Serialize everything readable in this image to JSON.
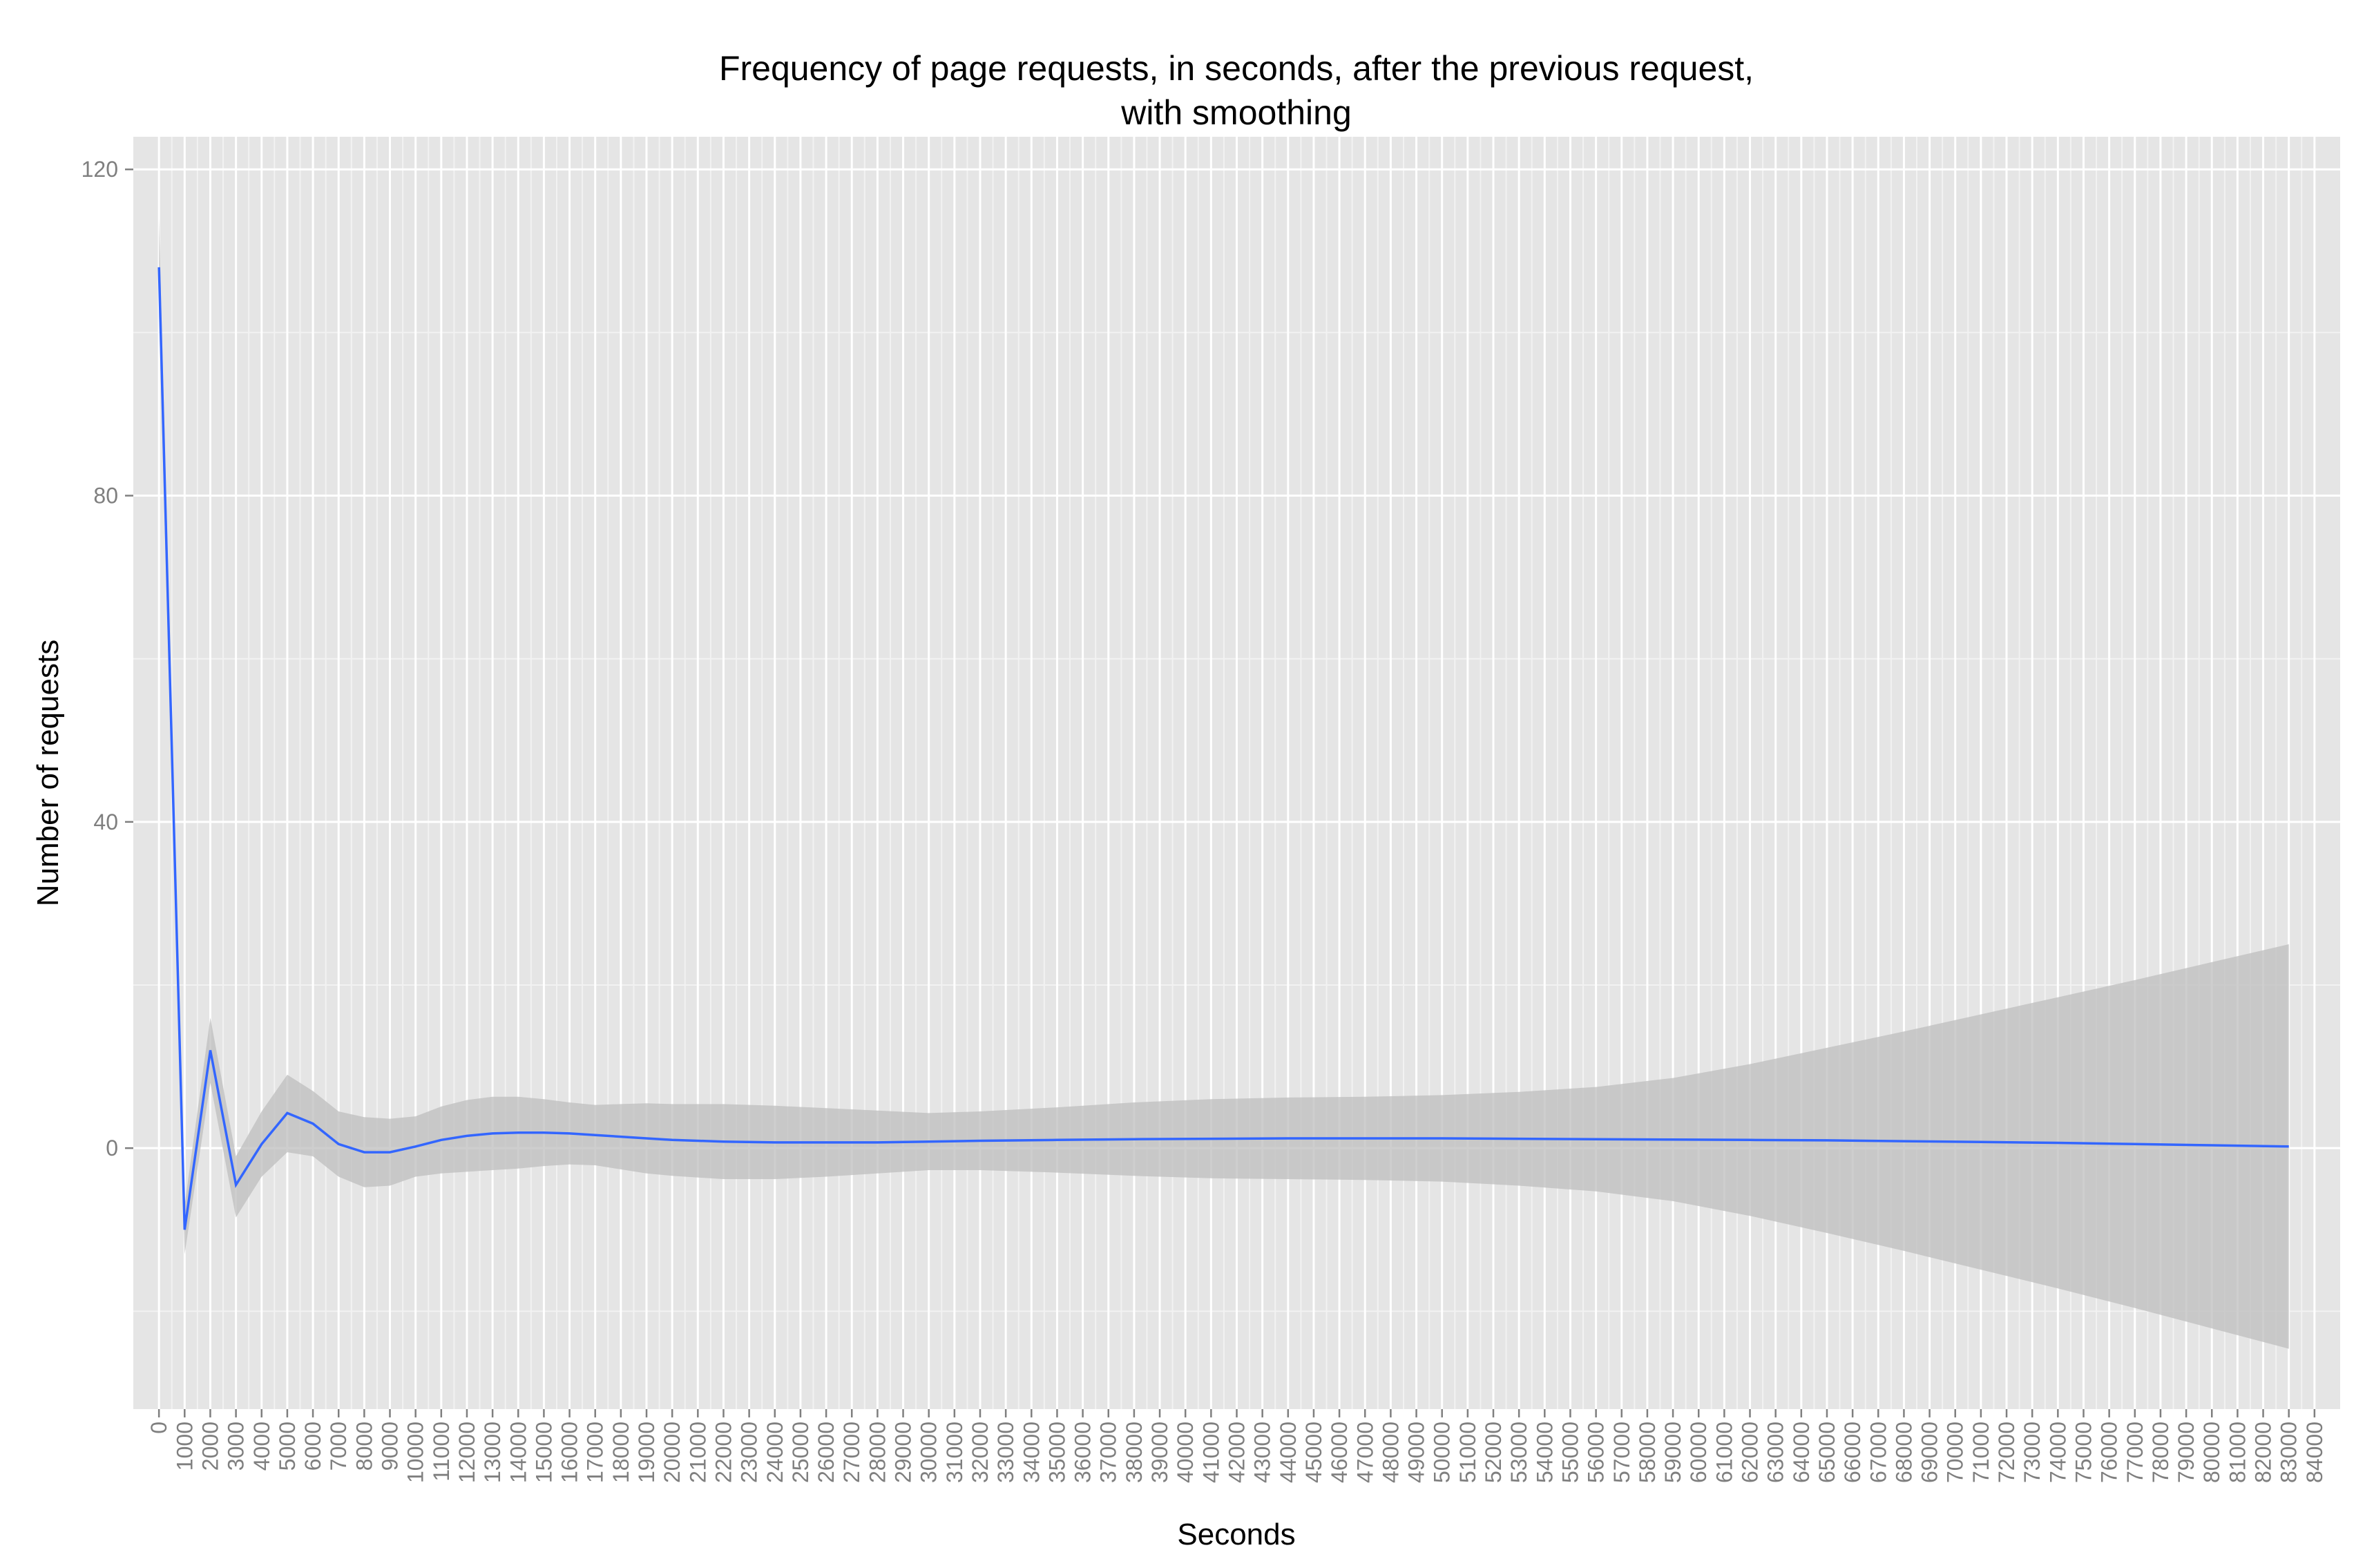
{
  "chart_data": {
    "type": "line",
    "title_lines": [
      "Frequency of page requests, in seconds, after the previous request,",
      "with smoothing"
    ],
    "xlabel": "Seconds",
    "ylabel": "Number of requests",
    "xlim": [
      -1000,
      85000
    ],
    "ylim": [
      -32,
      124
    ],
    "y_ticks": [
      0,
      40,
      80,
      120
    ],
    "y_minor": [
      -20,
      20,
      60,
      100
    ],
    "x_ticks": [
      0,
      1000,
      2000,
      3000,
      4000,
      5000,
      6000,
      7000,
      8000,
      9000,
      10000,
      11000,
      12000,
      13000,
      14000,
      15000,
      16000,
      17000,
      18000,
      19000,
      20000,
      21000,
      22000,
      23000,
      24000,
      25000,
      26000,
      27000,
      28000,
      29000,
      30000,
      31000,
      32000,
      33000,
      34000,
      35000,
      36000,
      37000,
      38000,
      39000,
      40000,
      41000,
      42000,
      43000,
      44000,
      45000,
      46000,
      47000,
      48000,
      49000,
      50000,
      51000,
      52000,
      53000,
      54000,
      55000,
      56000,
      57000,
      58000,
      59000,
      60000,
      61000,
      62000,
      63000,
      64000,
      65000,
      66000,
      67000,
      68000,
      69000,
      70000,
      71000,
      72000,
      73000,
      74000,
      75000,
      76000,
      77000,
      78000,
      79000,
      80000,
      81000,
      82000,
      83000,
      84000
    ],
    "x_labels": [
      "0",
      "1000",
      "2000",
      "3000",
      "4000",
      "5000",
      "6000",
      "7000",
      "8000",
      "9000",
      "10000",
      "11000",
      "12000",
      "13000",
      "14000",
      "15000",
      "16000",
      "17000",
      "18000",
      "19000",
      "20000",
      "21000",
      "22000",
      "23000",
      "24000",
      "25000",
      "26000",
      "27000",
      "28000",
      "29000",
      "30000",
      "31000",
      "32000",
      "33000",
      "34000",
      "35000",
      "36000",
      "37000",
      "38000",
      "39000",
      "40000",
      "41000",
      "42000",
      "43000",
      "44000",
      "45000",
      "46000",
      "47000",
      "48000",
      "49000",
      "50000",
      "51000",
      "52000",
      "53000",
      "54000",
      "55000",
      "56000",
      "57000",
      "58000",
      "59000",
      "60000",
      "61000",
      "62000",
      "63000",
      "64000",
      "65000",
      "66000",
      "67000",
      "68000",
      "69000",
      "70000",
      "71000",
      "72000",
      "73000",
      "74000",
      "75000",
      "76000",
      "77000",
      "78000",
      "79000",
      "80000",
      "81000",
      "82000",
      "83000",
      "84000"
    ],
    "grid": true,
    "background": "#e5e5e5",
    "band_color": "#bdbdbd",
    "line_color": "#3366ff",
    "series": [
      {
        "x": [
          0,
          1000,
          2000,
          3000,
          4000,
          5000,
          6000,
          7000,
          8000,
          9000,
          10000,
          11000,
          12000,
          13000,
          14000,
          15000,
          16000,
          17000,
          18000,
          19000,
          20000,
          22000,
          24000,
          26000,
          28000,
          30000,
          32000,
          35000,
          38000,
          41000,
          44000,
          47000,
          50000,
          53000,
          56000,
          59000,
          62000,
          65000,
          68000,
          71000,
          74000,
          77000,
          80000,
          83000
        ],
        "y": [
          108,
          -10,
          12,
          -4.5,
          0.5,
          4.3,
          3.0,
          0.5,
          -0.5,
          -0.5,
          0.2,
          1.0,
          1.5,
          1.8,
          1.9,
          1.9,
          1.8,
          1.6,
          1.4,
          1.2,
          1.0,
          0.8,
          0.7,
          0.7,
          0.7,
          0.8,
          0.9,
          1.0,
          1.1,
          1.15,
          1.2,
          1.2,
          1.2,
          1.15,
          1.1,
          1.05,
          1.0,
          0.95,
          0.85,
          0.75,
          0.65,
          0.5,
          0.35,
          0.2
        ],
        "lower": [
          102,
          -13,
          8,
          -8.5,
          -3.5,
          -0.5,
          -1.0,
          -3.5,
          -4.8,
          -4.6,
          -3.5,
          -3.1,
          -2.9,
          -2.7,
          -2.5,
          -2.2,
          -2.0,
          -2.1,
          -2.6,
          -3.1,
          -3.4,
          -3.8,
          -3.8,
          -3.5,
          -3.1,
          -2.7,
          -2.7,
          -3.0,
          -3.4,
          -3.7,
          -3.8,
          -3.9,
          -4.1,
          -4.6,
          -5.3,
          -6.5,
          -8.3,
          -10.4,
          -12.6,
          -14.9,
          -17.2,
          -19.6,
          -22.1,
          -24.6
        ],
        "upper": [
          114,
          -7,
          16,
          -1,
          4.5,
          9.0,
          7.0,
          4.5,
          3.8,
          3.6,
          3.9,
          5.1,
          5.9,
          6.3,
          6.3,
          6.0,
          5.6,
          5.3,
          5.4,
          5.5,
          5.4,
          5.4,
          5.2,
          4.9,
          4.6,
          4.3,
          4.5,
          5.0,
          5.6,
          6.0,
          6.2,
          6.3,
          6.5,
          6.9,
          7.5,
          8.6,
          10.3,
          12.3,
          14.3,
          16.4,
          18.5,
          20.6,
          22.8,
          25.0
        ]
      }
    ]
  }
}
